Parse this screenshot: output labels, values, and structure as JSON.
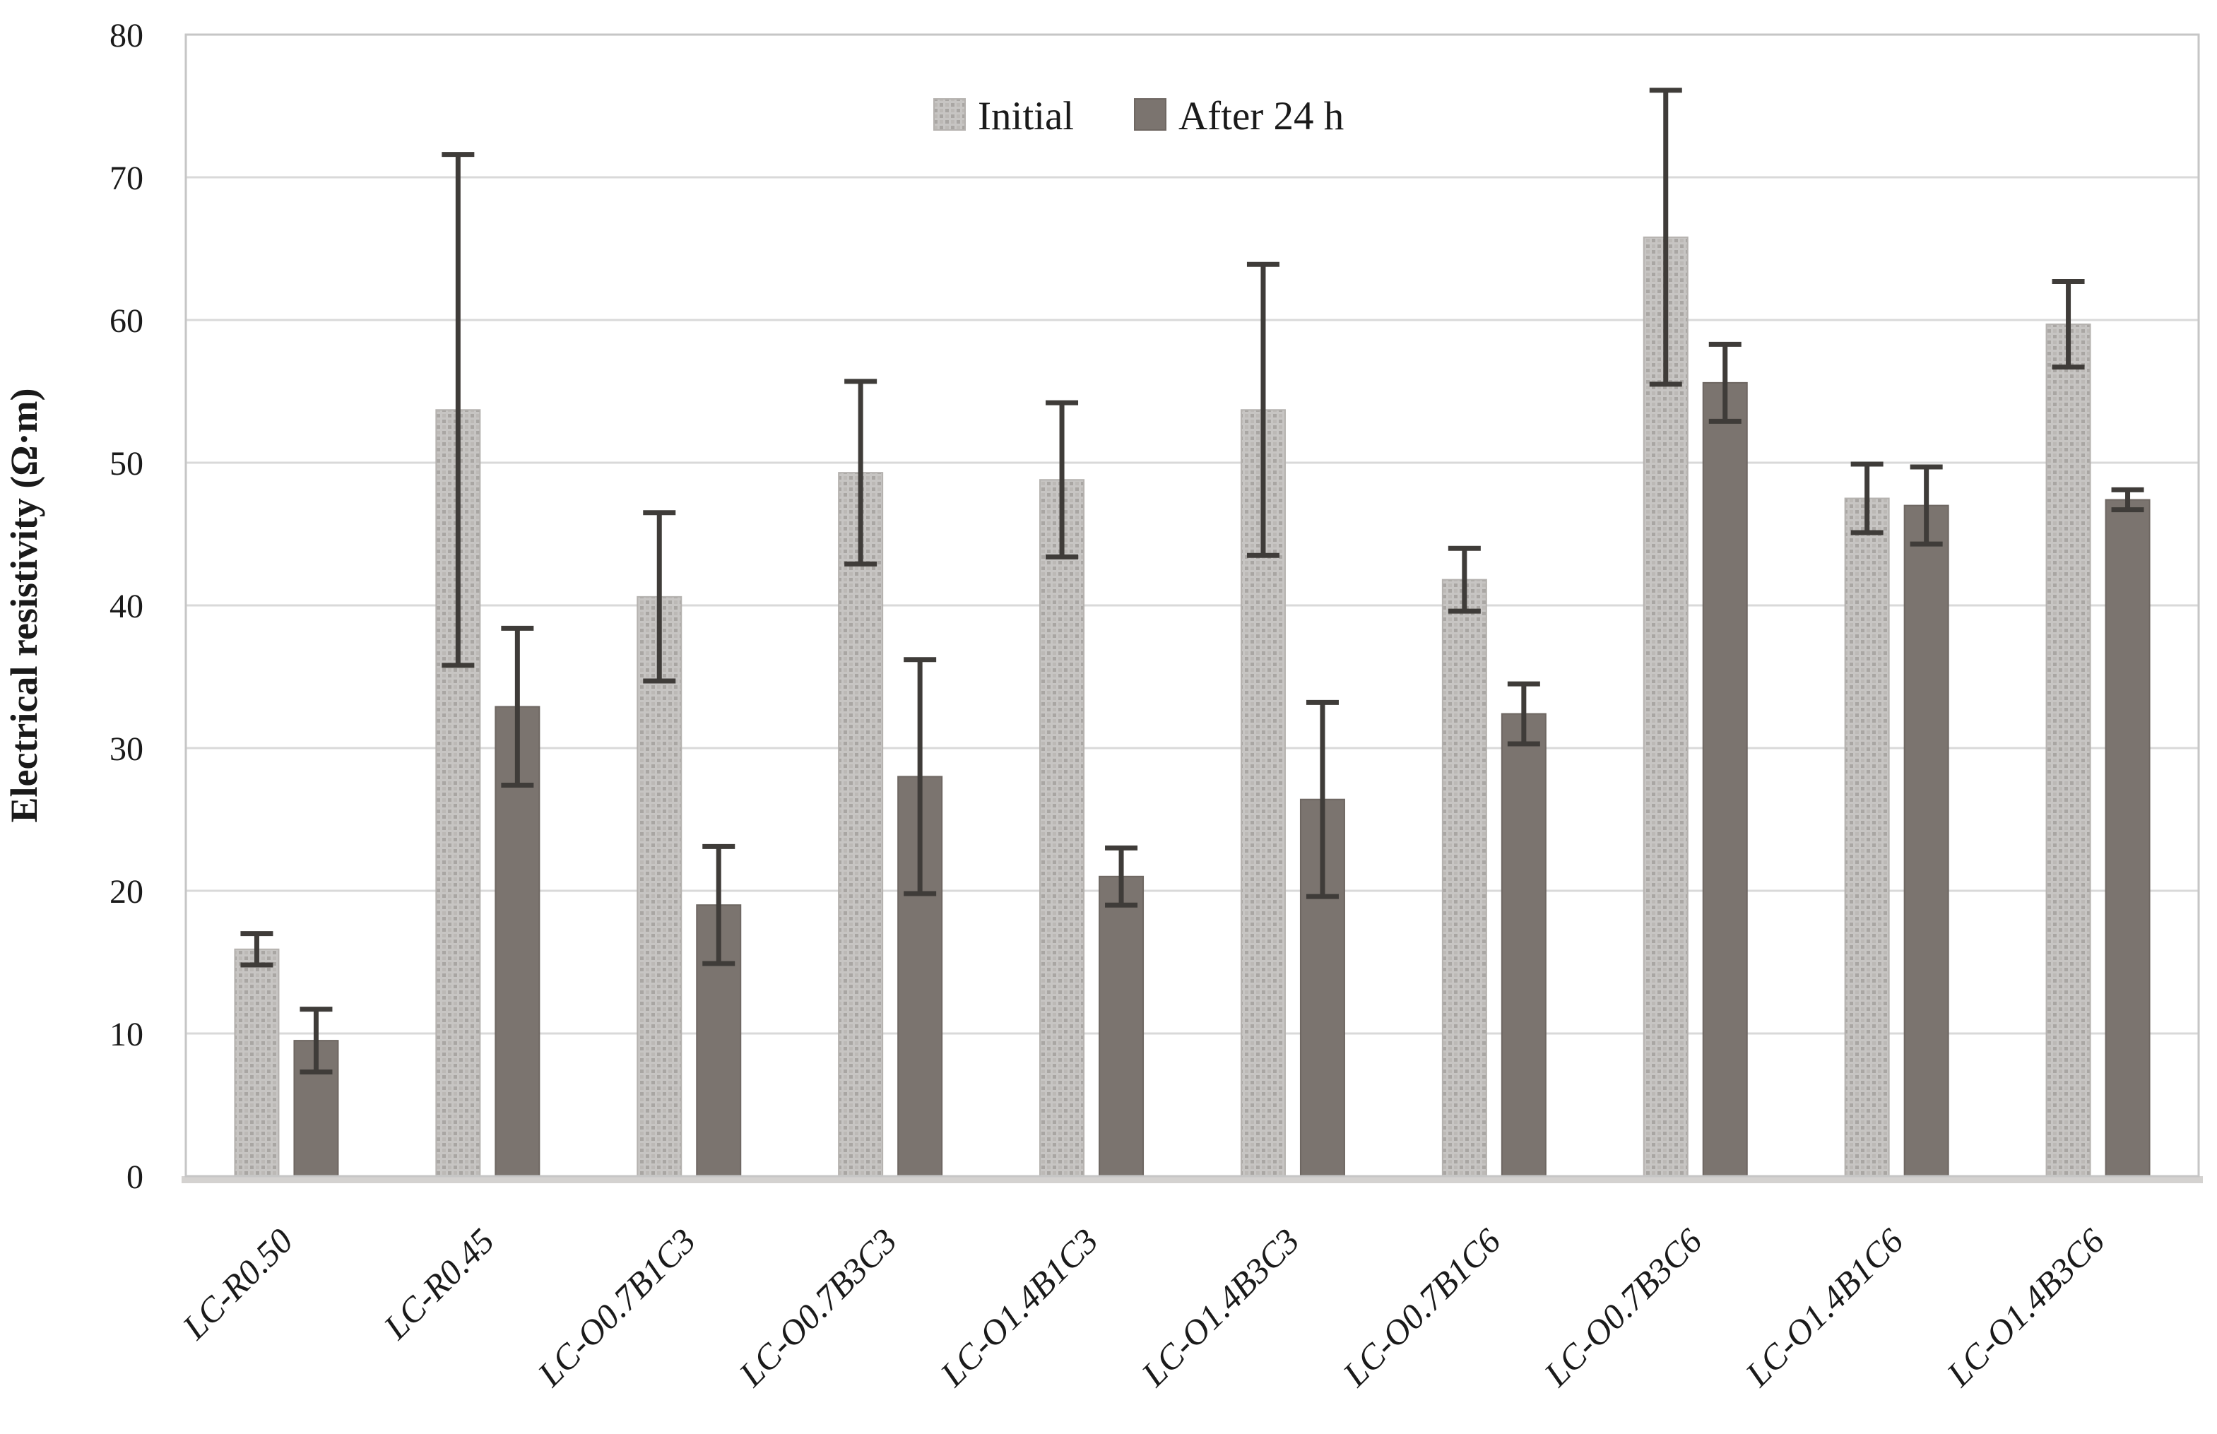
{
  "chart_data": {
    "type": "bar",
    "title": "",
    "xlabel": "",
    "ylabel": "Electrical resistivity (Ω·m)",
    "ylim": [
      0,
      80
    ],
    "ytick_step": 10,
    "grid": true,
    "legend_position": "top-center",
    "error_bars": true,
    "categories": [
      "LC-R0.50",
      "LC-R0.45",
      "LC-O0.7B1C3",
      "LC-O0.7B3C3",
      "LC-O1.4B1C3",
      "LC-O1.4B3C3",
      "LC-O0.7B1C6",
      "LC-O0.7B3C6",
      "LC-O1.4B1C6",
      "LC-O1.4B3C6"
    ],
    "series": [
      {
        "name": "Initial",
        "values": [
          15.9,
          53.7,
          40.6,
          49.3,
          48.8,
          53.7,
          41.8,
          65.8,
          47.5,
          59.7
        ],
        "errors": [
          1.1,
          17.9,
          5.9,
          6.4,
          5.4,
          10.2,
          2.2,
          10.3,
          2.4,
          3.0
        ]
      },
      {
        "name": "After 24 h",
        "values": [
          9.5,
          32.9,
          19.0,
          28.0,
          21.0,
          26.4,
          32.4,
          55.6,
          47.0,
          47.4
        ],
        "errors": [
          2.2,
          5.5,
          4.1,
          8.2,
          2.0,
          6.8,
          2.1,
          2.7,
          2.7,
          0.7
        ]
      }
    ],
    "yticks": [
      "0",
      "10",
      "20",
      "30",
      "40",
      "50",
      "60",
      "70",
      "80"
    ]
  },
  "legend": {
    "initial_label": "Initial",
    "after_label": "After 24 h"
  },
  "colors": {
    "initial_fill": "#c7c5c3",
    "initial_dot": "#a9a6a3",
    "initial_edge": "#b5b2af",
    "after_fill": "#7b746f",
    "after_edge": "#6e6762",
    "error_bar": "#3f3c39",
    "gridline": "#d9d9d9",
    "plot_border": "#c6c6c6",
    "axis_strip": "#d4d2d0",
    "text": "#1a1a1a"
  }
}
